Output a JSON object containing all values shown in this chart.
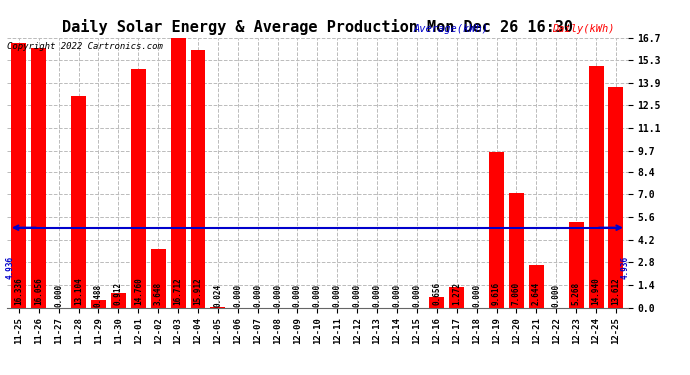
{
  "title": "Daily Solar Energy & Average Production Mon Dec 26 16:30",
  "copyright": "Copyright 2022 Cartronics.com",
  "legend_average": "Average(kWh)",
  "legend_daily": "Daily(kWh)",
  "average_value": 4.936,
  "average_label": "4.936",
  "categories": [
    "11-25",
    "11-26",
    "11-27",
    "11-28",
    "11-29",
    "11-30",
    "12-01",
    "12-02",
    "12-03",
    "12-04",
    "12-05",
    "12-06",
    "12-07",
    "12-08",
    "12-09",
    "12-10",
    "12-11",
    "12-12",
    "12-13",
    "12-14",
    "12-15",
    "12-16",
    "12-17",
    "12-18",
    "12-19",
    "12-20",
    "12-21",
    "12-22",
    "12-23",
    "12-24",
    "12-25"
  ],
  "values": [
    16.336,
    16.056,
    0.0,
    13.104,
    0.488,
    0.912,
    14.76,
    3.648,
    16.712,
    15.912,
    0.024,
    0.0,
    0.0,
    0.0,
    0.0,
    0.0,
    0.0,
    0.0,
    0.0,
    0.0,
    0.0,
    0.656,
    1.272,
    0.0,
    9.616,
    7.06,
    2.644,
    0.0,
    5.268,
    14.94,
    13.612
  ],
  "bar_color": "#ff0000",
  "average_line_color": "#0000cc",
  "background_color": "#ffffff",
  "grid_color": "#bbbbbb",
  "yticks": [
    0.0,
    1.4,
    2.8,
    4.2,
    5.6,
    7.0,
    8.4,
    9.7,
    11.1,
    12.5,
    13.9,
    15.3,
    16.7
  ],
  "ylim": [
    0.0,
    16.7
  ],
  "title_fontsize": 11,
  "label_fontsize": 5.5,
  "tick_fontsize": 7,
  "copyright_fontsize": 6.5,
  "legend_fontsize": 7.5
}
